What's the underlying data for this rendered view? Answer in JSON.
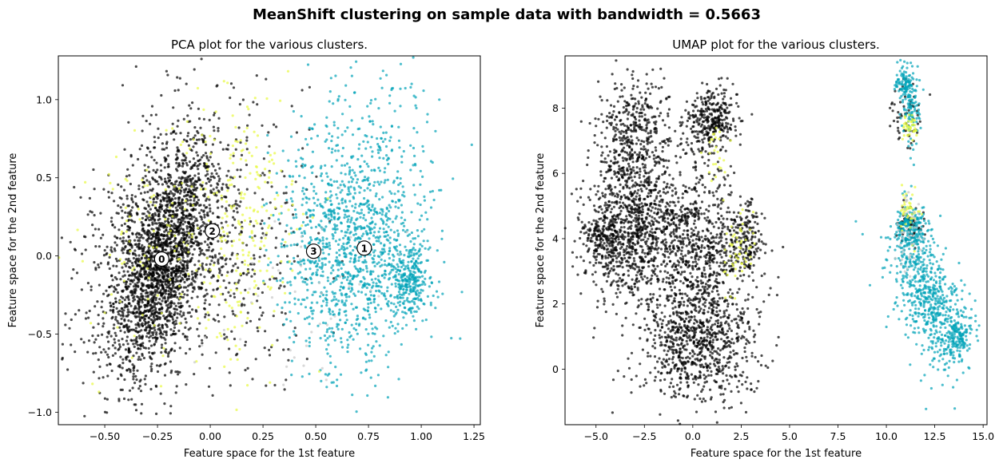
{
  "figure": {
    "suptitle": "MeanShift clustering on sample data with bandwidth = 0.5663"
  },
  "chart_data": [
    {
      "type": "scatter",
      "title": "PCA plot for the various clusters.",
      "xlabel": "Feature space for the 1st feature",
      "ylabel": "Feature space for the 2nd feature",
      "xlim": [
        -0.72,
        1.28
      ],
      "ylim": [
        -1.08,
        1.28
      ],
      "xticks": [
        -0.5,
        -0.25,
        0.0,
        0.25,
        0.5,
        0.75,
        1.0,
        1.25
      ],
      "xtick_labels": [
        "−0.50",
        "−0.25",
        "0.00",
        "0.25",
        "0.50",
        "0.75",
        "1.00",
        "1.25"
      ],
      "yticks": [
        -1.0,
        -0.5,
        0.0,
        0.5,
        1.0
      ],
      "ytick_labels": [
        "−1.0",
        "−0.5",
        "0.0",
        "0.5",
        "1.0"
      ],
      "grid": false,
      "series": [
        {
          "cluster": 0,
          "color": "#000000",
          "clouds": [
            {
              "cx": -0.22,
              "cy": -0.05,
              "sx": 0.12,
              "sy": 0.36,
              "rho": 0.55,
              "n": 1800
            },
            {
              "cx": -0.3,
              "cy": 0.1,
              "sx": 0.17,
              "sy": 0.4,
              "rho": 0.45,
              "n": 700
            },
            {
              "cx": 0.1,
              "cy": 0.05,
              "sx": 0.18,
              "sy": 0.45,
              "rho": 0.0,
              "n": 420
            }
          ]
        },
        {
          "cluster": 1,
          "color": "#00a2b8",
          "clouds": [
            {
              "cx": 0.72,
              "cy": 0.1,
              "sx": 0.17,
              "sy": 0.42,
              "rho": 0.0,
              "n": 1100
            },
            {
              "cx": 0.95,
              "cy": -0.15,
              "sx": 0.04,
              "sy": 0.12,
              "rho": 0.0,
              "n": 260
            },
            {
              "cx": 0.5,
              "cy": 0.0,
              "sx": 0.1,
              "sy": 0.35,
              "rho": 0.0,
              "n": 240
            }
          ]
        },
        {
          "cluster": 2,
          "color": "#e8f940",
          "clouds": [
            {
              "cx": 0.15,
              "cy": 0.2,
              "sx": 0.15,
              "sy": 0.4,
              "rho": 0.0,
              "n": 260
            },
            {
              "cx": -0.3,
              "cy": 0.0,
              "sx": 0.14,
              "sy": 0.4,
              "rho": 0.0,
              "n": 90
            }
          ]
        },
        {
          "cluster": 3,
          "color": "#c8c8c8",
          "clouds": [
            {
              "cx": 0.4,
              "cy": -0.3,
              "sx": 0.3,
              "sy": 0.3,
              "rho": 0.0,
              "n": 45
            }
          ]
        }
      ],
      "centers": [
        {
          "label": "0",
          "x": -0.23,
          "y": -0.02
        },
        {
          "label": "1",
          "x": 0.73,
          "y": 0.05
        },
        {
          "label": "2",
          "x": 0.01,
          "y": 0.16
        },
        {
          "label": "3",
          "x": 0.49,
          "y": 0.03
        }
      ]
    },
    {
      "type": "scatter",
      "title": "UMAP plot for the various clusters.",
      "xlabel": "Feature space for the 1st feature",
      "ylabel": "Feature space for the 2nd feature",
      "xlim": [
        -6.6,
        15.2
      ],
      "ylim": [
        -1.7,
        9.6
      ],
      "xticks": [
        -5,
        -2.5,
        0,
        2.5,
        5,
        7.5,
        10,
        12.5,
        15
      ],
      "xtick_labels": [
        "−5.0",
        "−2.5",
        "0.0",
        "2.5",
        "5.0",
        "7.5",
        "10.0",
        "12.5",
        "15.0"
      ],
      "yticks": [
        0,
        2,
        4,
        6,
        8
      ],
      "ytick_labels": [
        "0",
        "2",
        "4",
        "6",
        "8"
      ],
      "grid": false,
      "series": [
        {
          "cluster": 0,
          "color": "#000000",
          "clouds": [
            {
              "cx": -3.0,
              "cy": 4.2,
              "sx": 1.3,
              "sy": 1.1,
              "rho": 0.0,
              "n": 900
            },
            {
              "cx": 0.3,
              "cy": 3.8,
              "sx": 1.5,
              "sy": 1.3,
              "rho": 0.0,
              "n": 700
            },
            {
              "cx": -4.5,
              "cy": 4.0,
              "sx": 0.6,
              "sy": 0.4,
              "rho": 0.0,
              "n": 160
            },
            {
              "cx": 0.2,
              "cy": 0.8,
              "sx": 1.5,
              "sy": 1.0,
              "rho": 0.0,
              "n": 850
            },
            {
              "cx": -3.0,
              "cy": 7.0,
              "sx": 0.9,
              "sy": 1.0,
              "rho": 0.0,
              "n": 450
            },
            {
              "cx": 1.0,
              "cy": 7.6,
              "sx": 0.75,
              "sy": 0.5,
              "rho": 0.0,
              "n": 330
            },
            {
              "cx": 2.7,
              "cy": 3.9,
              "sx": 0.45,
              "sy": 0.55,
              "rho": 0.0,
              "n": 150
            },
            {
              "cx": 11.0,
              "cy": 7.8,
              "sx": 0.35,
              "sy": 0.5,
              "rho": 0.0,
              "n": 60
            },
            {
              "cx": 11.2,
              "cy": 4.4,
              "sx": 0.35,
              "sy": 0.3,
              "rho": 0.0,
              "n": 60
            }
          ]
        },
        {
          "cluster": 1,
          "color": "#00a2b8",
          "clouds": [
            {
              "cx": 11.0,
              "cy": 8.8,
              "sx": 0.25,
              "sy": 0.25,
              "rho": 0.0,
              "n": 110
            },
            {
              "cx": 11.3,
              "cy": 7.9,
              "sx": 0.3,
              "sy": 0.45,
              "rho": 0.0,
              "n": 90
            },
            {
              "cx": 12.2,
              "cy": 2.2,
              "sx": 1.0,
              "sy": 1.1,
              "rho": -0.55,
              "n": 600
            },
            {
              "cx": 11.3,
              "cy": 4.3,
              "sx": 0.45,
              "sy": 0.35,
              "rho": 0.0,
              "n": 200
            },
            {
              "cx": 13.6,
              "cy": 1.0,
              "sx": 0.45,
              "sy": 0.35,
              "rho": 0.0,
              "n": 150
            }
          ]
        },
        {
          "cluster": 2,
          "color": "#e8f940",
          "clouds": [
            {
              "cx": 11.2,
              "cy": 7.4,
              "sx": 0.2,
              "sy": 0.25,
              "rho": 0.0,
              "n": 40
            },
            {
              "cx": 11.2,
              "cy": 4.8,
              "sx": 0.3,
              "sy": 0.3,
              "rho": 0.0,
              "n": 45
            },
            {
              "cx": 2.4,
              "cy": 3.6,
              "sx": 0.4,
              "sy": 0.7,
              "rho": 0.0,
              "n": 55
            },
            {
              "cx": 1.2,
              "cy": 6.6,
              "sx": 0.35,
              "sy": 0.5,
              "rho": 0.0,
              "n": 25
            }
          ]
        },
        {
          "cluster": 3,
          "color": "#c8c8c8",
          "clouds": [
            {
              "cx": 11.2,
              "cy": 4.2,
              "sx": 0.4,
              "sy": 0.6,
              "rho": 0.0,
              "n": 45
            }
          ]
        }
      ],
      "centers": []
    }
  ]
}
